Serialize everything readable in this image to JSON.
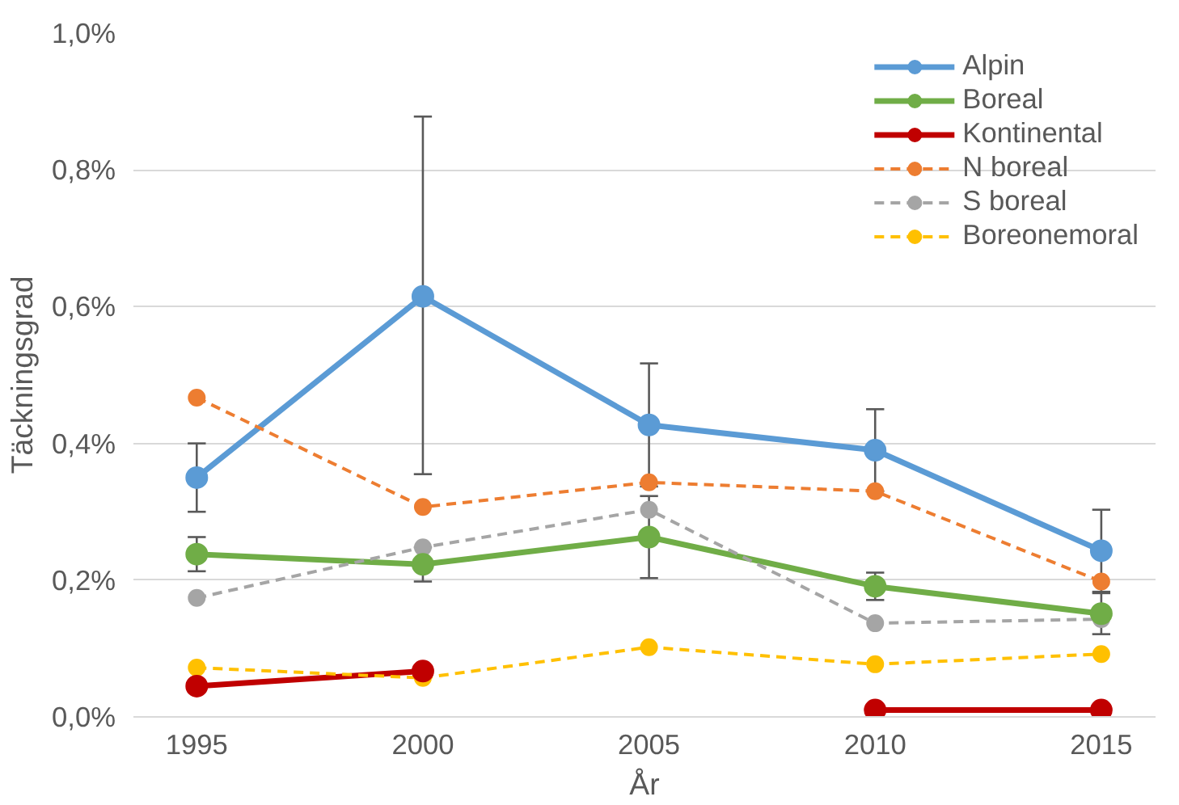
{
  "chart_data": {
    "type": "line",
    "xlabel": "År",
    "ylabel": "Täckningsgrad",
    "x": [
      1995,
      2000,
      2005,
      2010,
      2015
    ],
    "xlim": [
      1993.6,
      2016.2
    ],
    "xticks": [
      1995,
      2000,
      2005,
      2010,
      2015
    ],
    "ylim": [
      0,
      1.0
    ],
    "yticks": [
      {
        "value": 0,
        "label": "0,0%"
      },
      {
        "value": 0.2,
        "label": "0,2%"
      },
      {
        "value": 0.4,
        "label": "0,4%"
      },
      {
        "value": 0.6,
        "label": "0,6%"
      },
      {
        "value": 0.8,
        "label": "0,8%"
      },
      {
        "value": 1.0,
        "label": "1,0%"
      }
    ],
    "grid": "y",
    "legend": "top right",
    "marker": "circle",
    "series": [
      {
        "name": "Alpin",
        "color": "#5b9bd5",
        "line_style": "solid",
        "values": [
          0.35,
          0.615,
          0.427,
          0.39,
          0.243
        ],
        "errors": [
          0.05,
          [
            0.355,
            0.878
          ],
          0.09,
          0.06,
          0.06
        ]
      },
      {
        "name": "Boreal",
        "color": "#70ad47",
        "line_style": "solid",
        "values": [
          0.238,
          0.223,
          0.263,
          0.191,
          0.151
        ],
        "errors": [
          0.025,
          0.025,
          0.06,
          0.02,
          0.03
        ]
      },
      {
        "name": "Kontinental",
        "color": "#c00000",
        "line_style": "solid",
        "values": [
          0.045,
          0.067,
          null,
          0.01,
          0.01
        ]
      },
      {
        "name": "N boreal",
        "color": "#ed7d31",
        "line_style": "dashed",
        "values": [
          0.467,
          0.307,
          0.343,
          0.33,
          0.198
        ]
      },
      {
        "name": "S boreal",
        "color": "#a5a5a5",
        "line_style": "dashed",
        "values": [
          0.174,
          0.248,
          0.303,
          0.137,
          0.143
        ]
      },
      {
        "name": "Boreonemoral",
        "color": "#ffc000",
        "line_style": "dashed",
        "values": [
          0.072,
          0.057,
          0.102,
          0.077,
          0.092
        ]
      }
    ]
  }
}
